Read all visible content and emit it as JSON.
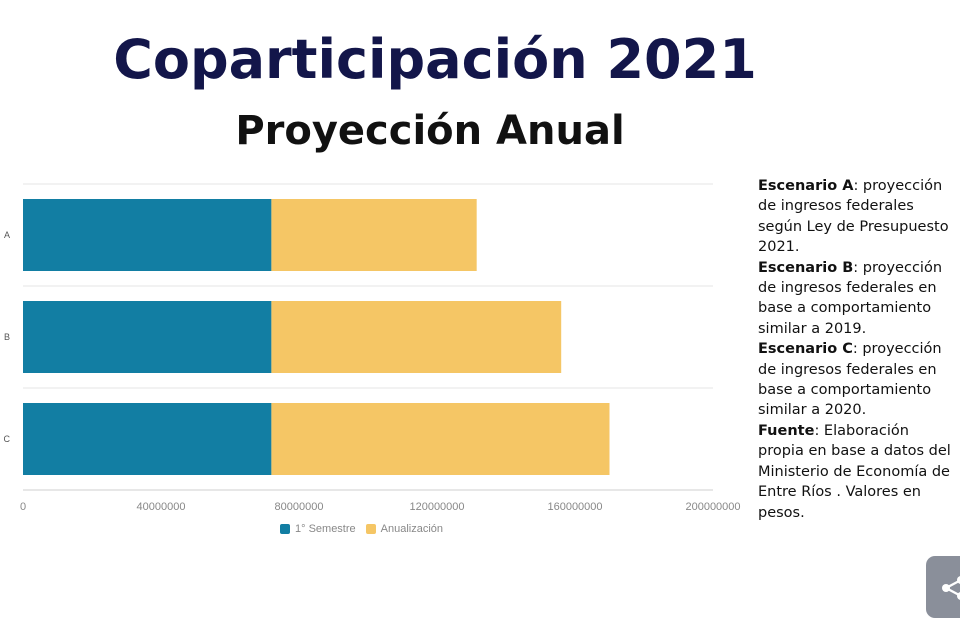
{
  "header": {
    "title": "Coparticipación 2021",
    "subtitle": "Proyección Anual"
  },
  "chart_data": {
    "type": "bar",
    "orientation": "horizontal",
    "stacked": true,
    "categories": [
      "A",
      "B",
      "C"
    ],
    "series": [
      {
        "name": "1° Semestre",
        "values": [
          72000000,
          72000000,
          72000000
        ],
        "color": "#127ea3"
      },
      {
        "name": "Anualización",
        "values": [
          59500000,
          84000000,
          98000000
        ],
        "color": "#f5c665"
      }
    ],
    "xlim": [
      0,
      200000000
    ],
    "xticks": [
      "0",
      "40000000",
      "80000000",
      "120000000",
      "160000000",
      "200000000"
    ],
    "grid": true,
    "legend_position": "bottom"
  },
  "notes": [
    {
      "label": "Escenario A",
      "text": ": proyección de ingresos federales según Ley de Presupuesto 2021."
    },
    {
      "label": "Escenario B",
      "text": ": proyección de ingresos federales en base a comportamiento similar a 2019."
    },
    {
      "label": "Escenario C",
      "text": ": proyección de ingresos federales en base a comportamiento similar a 2020."
    },
    {
      "label": "Fuente",
      "text": ": Elaboración propia en base a datos del Ministerio de Economía de Entre Ríos . Valores en pesos."
    }
  ],
  "share": {
    "icon": "share-icon"
  }
}
